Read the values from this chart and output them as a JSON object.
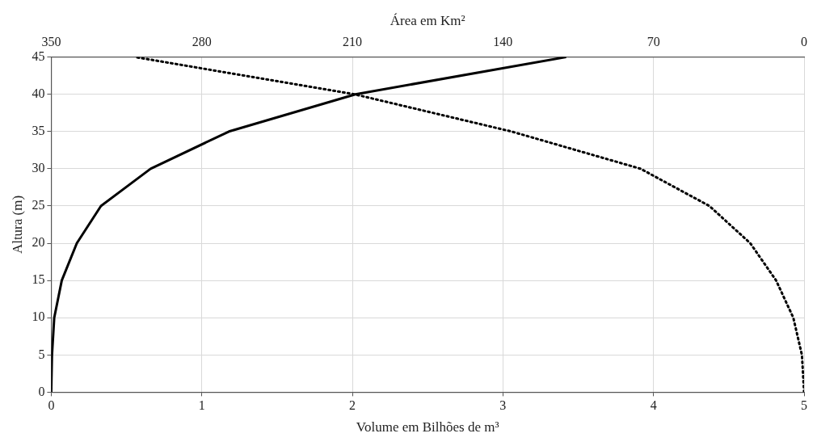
{
  "chart_data": {
    "type": "line",
    "xlabel": "Volume em Bilhões de m³",
    "x2label": "Área em Km²",
    "ylabel": "Altura (m)",
    "xlim": [
      0,
      5
    ],
    "xticks": [
      0,
      1,
      2,
      3,
      4,
      5
    ],
    "x2lim": [
      350,
      0
    ],
    "x2ticks": [
      350,
      280,
      210,
      140,
      70,
      0
    ],
    "ylim": [
      0,
      45
    ],
    "yticks": [
      0,
      5,
      10,
      15,
      20,
      25,
      30,
      35,
      40,
      45
    ],
    "grid": true,
    "legend": false,
    "marker": "none",
    "series": [
      {
        "color": "#000000",
        "line_style": "solid",
        "x": [
          0,
          0.005,
          0.02,
          0.07,
          0.17,
          0.33,
          0.66,
          1.18,
          2.02,
          3.42
        ],
        "values": [
          0,
          5,
          10,
          15,
          20,
          25,
          30,
          35,
          40,
          45
        ]
      },
      {
        "color": "#000000",
        "line_style": "dotted",
        "axis": "x2",
        "x": [
          0,
          1,
          5,
          13,
          25,
          44,
          76,
          136,
          209,
          311
        ],
        "values": [
          0,
          5,
          10,
          15,
          20,
          25,
          30,
          35,
          40,
          45
        ]
      }
    ]
  }
}
